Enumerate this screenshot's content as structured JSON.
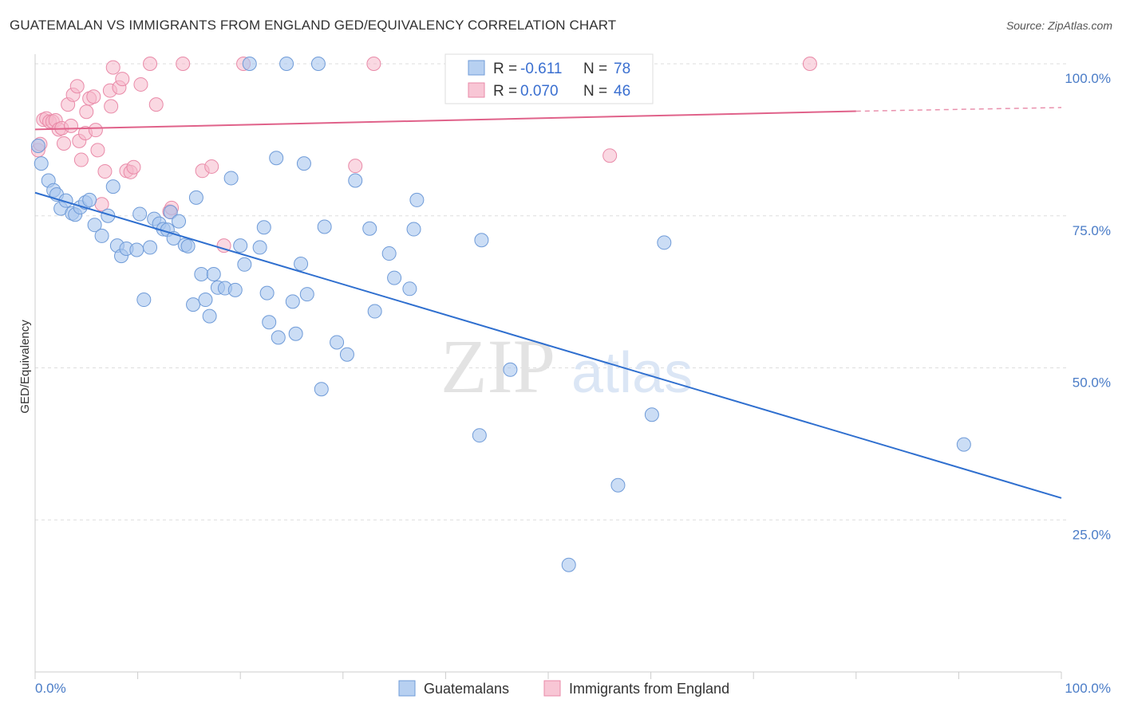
{
  "title": "GUATEMALAN VS IMMIGRANTS FROM ENGLAND GED/EQUIVALENCY CORRELATION CHART",
  "source": "Source: ZipAtlas.com",
  "watermark": {
    "zip": "ZIP",
    "atlas": "atlas"
  },
  "colors": {
    "blue_fill": "#a9c6ee",
    "blue_stroke": "#6f9bd8",
    "blue_line": "#2f6fcf",
    "pink_fill": "#f6b8cb",
    "pink_stroke": "#e98aa8",
    "pink_line": "#e0628a",
    "grid": "#dddddd",
    "axis_text": "#4a7cc7"
  },
  "legend": {
    "rows": [
      {
        "r_label": "R =",
        "r_value": "-0.611",
        "n_label": "N =",
        "n_value": "78"
      },
      {
        "r_label": "R =",
        "r_value": "0.070",
        "n_label": "N =",
        "n_value": "46"
      }
    ]
  },
  "bottom_legend": [
    "Guatemalans",
    "Immigrants from England"
  ],
  "chart_data": {
    "type": "scatter",
    "ylabel": "GED/Equivalency",
    "xlim": [
      0,
      100
    ],
    "ylim": [
      0,
      100
    ],
    "x_tick_labels": [
      "0.0%",
      "100.0%"
    ],
    "y_ticks": [
      25,
      50,
      75,
      100
    ],
    "y_tick_labels": [
      "25.0%",
      "50.0%",
      "75.0%",
      "100.0%"
    ],
    "grid": true,
    "legend_position": "top-center",
    "series": [
      {
        "name": "Guatemalans",
        "trend": {
          "x": [
            0,
            100
          ],
          "y": [
            78.8,
            28.6
          ]
        },
        "points": [
          [
            0.3,
            86.5
          ],
          [
            0.6,
            83.6
          ],
          [
            1.3,
            80.8
          ],
          [
            1.8,
            79.2
          ],
          [
            2.1,
            78.5
          ],
          [
            2.5,
            76.2
          ],
          [
            3.0,
            77.5
          ],
          [
            3.6,
            75.4
          ],
          [
            3.9,
            75.2
          ],
          [
            4.4,
            76.4
          ],
          [
            4.9,
            77.2
          ],
          [
            5.3,
            77.6
          ],
          [
            5.8,
            73.5
          ],
          [
            6.5,
            71.7
          ],
          [
            7.1,
            75.0
          ],
          [
            7.6,
            79.8
          ],
          [
            8.0,
            70.1
          ],
          [
            8.4,
            68.4
          ],
          [
            8.9,
            69.6
          ],
          [
            9.9,
            69.4
          ],
          [
            10.2,
            75.3
          ],
          [
            10.6,
            61.2
          ],
          [
            11.2,
            69.8
          ],
          [
            11.6,
            74.5
          ],
          [
            12.1,
            73.7
          ],
          [
            12.5,
            72.8
          ],
          [
            12.9,
            72.7
          ],
          [
            13.2,
            75.6
          ],
          [
            13.5,
            71.3
          ],
          [
            14.0,
            74.1
          ],
          [
            14.6,
            70.2
          ],
          [
            14.9,
            70.0
          ],
          [
            15.4,
            60.4
          ],
          [
            15.7,
            78.0
          ],
          [
            16.2,
            65.4
          ],
          [
            16.6,
            61.2
          ],
          [
            17.0,
            58.5
          ],
          [
            17.4,
            65.4
          ],
          [
            17.8,
            63.2
          ],
          [
            18.5,
            63.1
          ],
          [
            19.1,
            81.2
          ],
          [
            19.5,
            62.8
          ],
          [
            20.0,
            70.1
          ],
          [
            20.4,
            67.0
          ],
          [
            20.9,
            100.0
          ],
          [
            21.9,
            69.8
          ],
          [
            22.3,
            73.1
          ],
          [
            22.6,
            62.3
          ],
          [
            22.8,
            57.5
          ],
          [
            23.5,
            84.5
          ],
          [
            23.7,
            55.0
          ],
          [
            24.5,
            100.0
          ],
          [
            25.1,
            60.9
          ],
          [
            25.4,
            55.6
          ],
          [
            25.9,
            67.1
          ],
          [
            26.2,
            83.6
          ],
          [
            26.5,
            62.1
          ],
          [
            27.6,
            100.0
          ],
          [
            27.9,
            46.5
          ],
          [
            28.2,
            73.2
          ],
          [
            29.4,
            54.2
          ],
          [
            30.4,
            52.2
          ],
          [
            31.2,
            80.8
          ],
          [
            32.6,
            72.9
          ],
          [
            33.1,
            59.3
          ],
          [
            34.5,
            68.8
          ],
          [
            35.0,
            64.8
          ],
          [
            36.5,
            63.0
          ],
          [
            36.9,
            72.8
          ],
          [
            37.2,
            77.6
          ],
          [
            43.3,
            38.9
          ],
          [
            43.5,
            71.0
          ],
          [
            46.3,
            49.7
          ],
          [
            52.0,
            17.6
          ],
          [
            56.8,
            30.7
          ],
          [
            60.1,
            42.3
          ],
          [
            61.3,
            70.6
          ],
          [
            90.5,
            37.4
          ]
        ]
      },
      {
        "name": "Immigrants from England",
        "trend": {
          "x": [
            0,
            80
          ],
          "y": [
            89.2,
            92.2
          ],
          "dashed_to": [
            100,
            92.8
          ]
        },
        "points": [
          [
            0.3,
            85.8
          ],
          [
            0.5,
            86.8
          ],
          [
            0.8,
            90.8
          ],
          [
            1.1,
            91.0
          ],
          [
            1.4,
            90.5
          ],
          [
            1.7,
            90.5
          ],
          [
            2.0,
            90.7
          ],
          [
            2.3,
            89.2
          ],
          [
            2.6,
            89.4
          ],
          [
            2.8,
            86.9
          ],
          [
            3.2,
            93.3
          ],
          [
            3.5,
            89.8
          ],
          [
            3.7,
            94.9
          ],
          [
            4.1,
            96.3
          ],
          [
            4.3,
            87.3
          ],
          [
            4.5,
            84.2
          ],
          [
            4.9,
            88.6
          ],
          [
            5.0,
            92.1
          ],
          [
            5.3,
            94.3
          ],
          [
            5.7,
            94.6
          ],
          [
            5.9,
            89.1
          ],
          [
            6.1,
            85.8
          ],
          [
            6.5,
            76.9
          ],
          [
            6.8,
            82.3
          ],
          [
            7.3,
            95.6
          ],
          [
            7.4,
            93.0
          ],
          [
            7.6,
            99.4
          ],
          [
            8.2,
            96.1
          ],
          [
            8.5,
            97.5
          ],
          [
            8.9,
            82.4
          ],
          [
            9.3,
            82.2
          ],
          [
            9.6,
            83.0
          ],
          [
            10.3,
            96.6
          ],
          [
            11.2,
            100.0
          ],
          [
            11.8,
            93.3
          ],
          [
            13.1,
            75.7
          ],
          [
            13.3,
            76.3
          ],
          [
            14.4,
            100.0
          ],
          [
            16.3,
            82.4
          ],
          [
            17.2,
            83.1
          ],
          [
            18.4,
            70.1
          ],
          [
            20.3,
            100.0
          ],
          [
            31.2,
            83.2
          ],
          [
            33.0,
            100.0
          ],
          [
            56.0,
            84.9
          ],
          [
            75.5,
            100.0
          ]
        ]
      }
    ]
  }
}
